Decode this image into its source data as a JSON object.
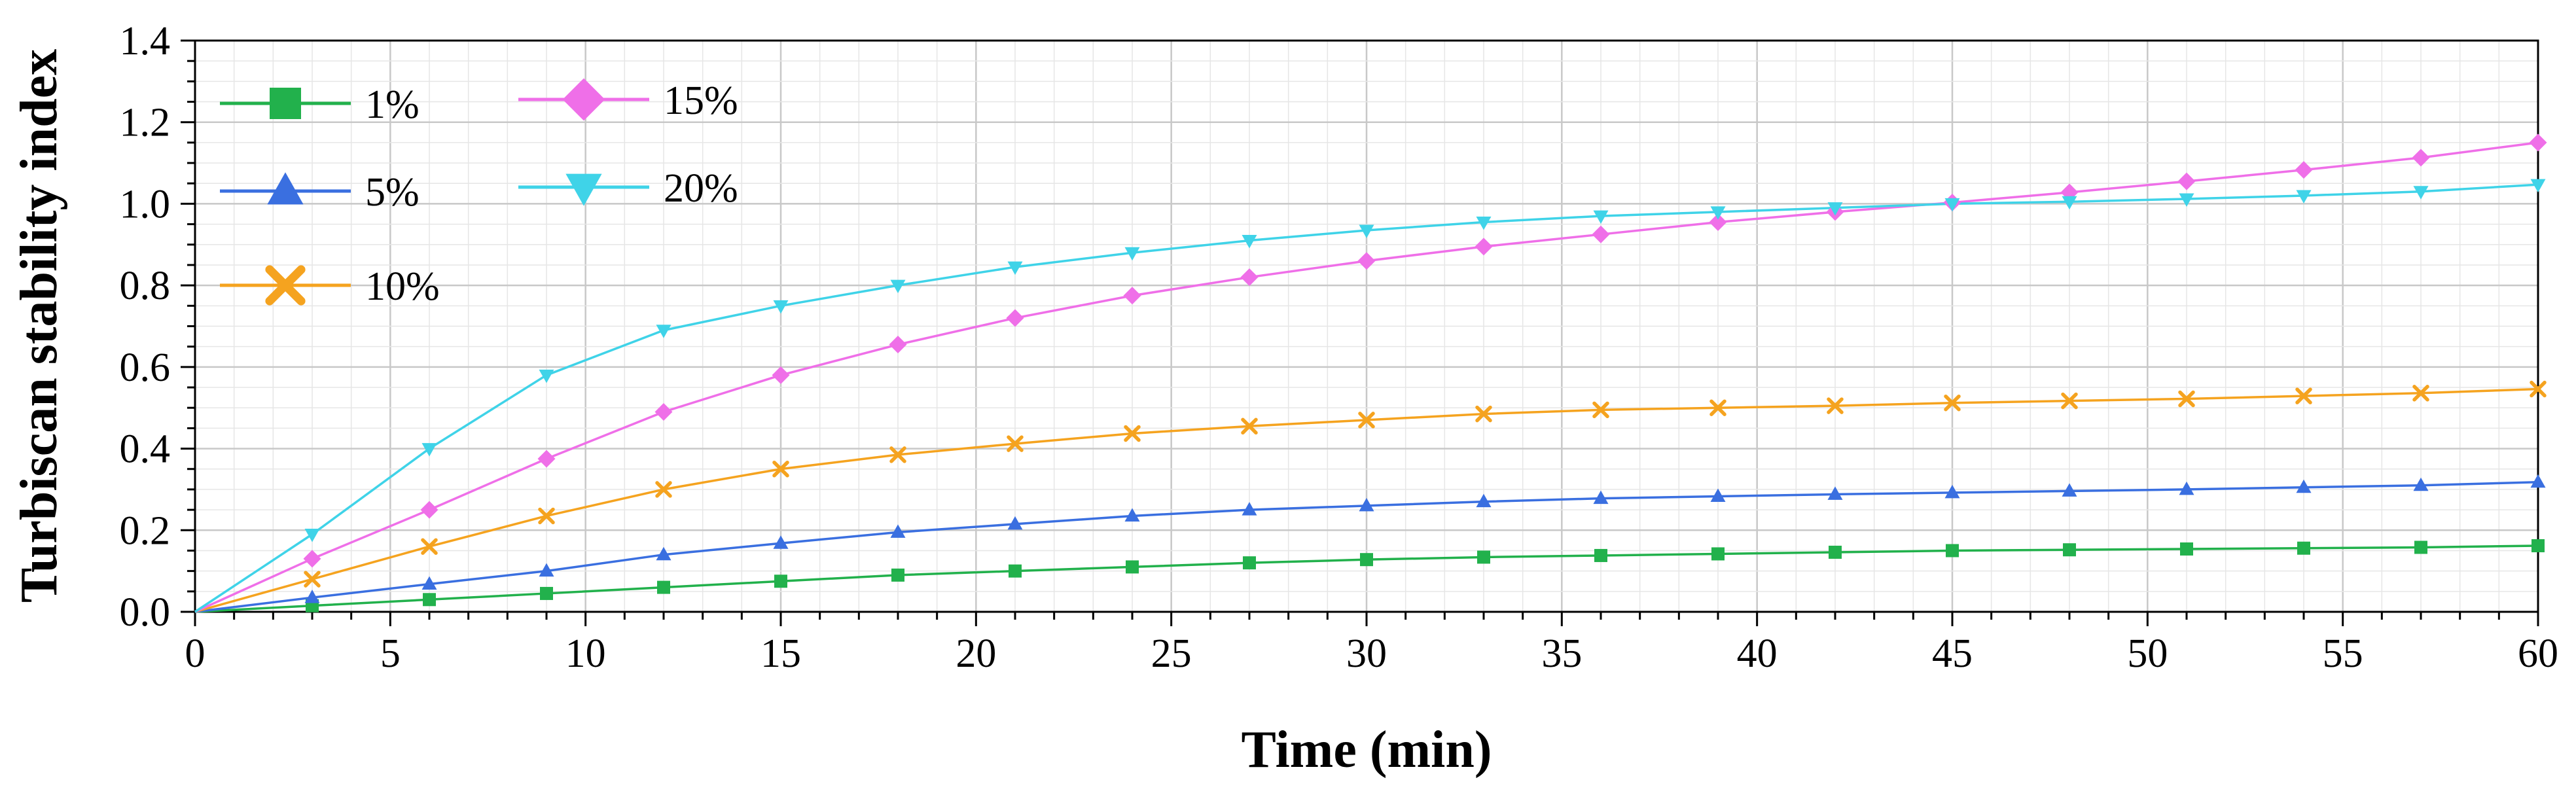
{
  "chart_data": {
    "type": "line",
    "title": "",
    "xlabel": "Time (min)",
    "ylabel": "Turbiscan stability index",
    "xlim": [
      0,
      60
    ],
    "ylim": [
      0,
      1.4
    ],
    "x_ticks": [
      0,
      5,
      10,
      15,
      20,
      25,
      30,
      35,
      40,
      45,
      50,
      55,
      60
    ],
    "x_tick_labels": [
      "0",
      "5",
      "10",
      "15",
      "20",
      "25",
      "30",
      "35",
      "40",
      "45",
      "50",
      "55",
      "60"
    ],
    "y_ticks": [
      0,
      0.2,
      0.4,
      0.6,
      0.8,
      1.0,
      1.2,
      1.4
    ],
    "y_tick_labels": [
      "0.0",
      "0.2",
      "0.4",
      "0.6",
      "0.8",
      "1.0",
      "1.2",
      "1.4"
    ],
    "grid": true,
    "legend_position": "top-left",
    "x": [
      0,
      3,
      6,
      9,
      12,
      15,
      18,
      21,
      24,
      27,
      30,
      33,
      36,
      39,
      42,
      45,
      48,
      51,
      54,
      57,
      60
    ],
    "series": [
      {
        "name": "1%",
        "color": "#22b14c",
        "marker": "square",
        "values": [
          0,
          0.015,
          0.03,
          0.045,
          0.06,
          0.075,
          0.09,
          0.1,
          0.11,
          0.12,
          0.128,
          0.134,
          0.138,
          0.142,
          0.146,
          0.15,
          0.152,
          0.154,
          0.156,
          0.158,
          0.162
        ]
      },
      {
        "name": "5%",
        "color": "#3a6fe0",
        "marker": "triangle-up",
        "values": [
          0,
          0.035,
          0.068,
          0.1,
          0.14,
          0.168,
          0.195,
          0.215,
          0.235,
          0.25,
          0.26,
          0.27,
          0.278,
          0.283,
          0.288,
          0.292,
          0.296,
          0.3,
          0.305,
          0.31,
          0.318
        ]
      },
      {
        "name": "10%",
        "color": "#f5a31f",
        "marker": "x",
        "values": [
          0,
          0.08,
          0.16,
          0.235,
          0.3,
          0.35,
          0.385,
          0.412,
          0.437,
          0.455,
          0.47,
          0.485,
          0.495,
          0.5,
          0.505,
          0.512,
          0.517,
          0.522,
          0.529,
          0.536,
          0.546
        ]
      },
      {
        "name": "15%",
        "color": "#ef6fe8",
        "marker": "diamond",
        "values": [
          0,
          0.13,
          0.25,
          0.375,
          0.49,
          0.58,
          0.655,
          0.72,
          0.775,
          0.82,
          0.86,
          0.895,
          0.925,
          0.955,
          0.98,
          1.003,
          1.028,
          1.055,
          1.083,
          1.113,
          1.15
        ]
      },
      {
        "name": "20%",
        "color": "#3fd3e8",
        "marker": "triangle-down",
        "values": [
          0,
          0.19,
          0.4,
          0.58,
          0.69,
          0.75,
          0.8,
          0.845,
          0.88,
          0.91,
          0.935,
          0.955,
          0.97,
          0.98,
          0.99,
          1.0,
          1.005,
          1.012,
          1.02,
          1.03,
          1.047
        ]
      }
    ]
  }
}
